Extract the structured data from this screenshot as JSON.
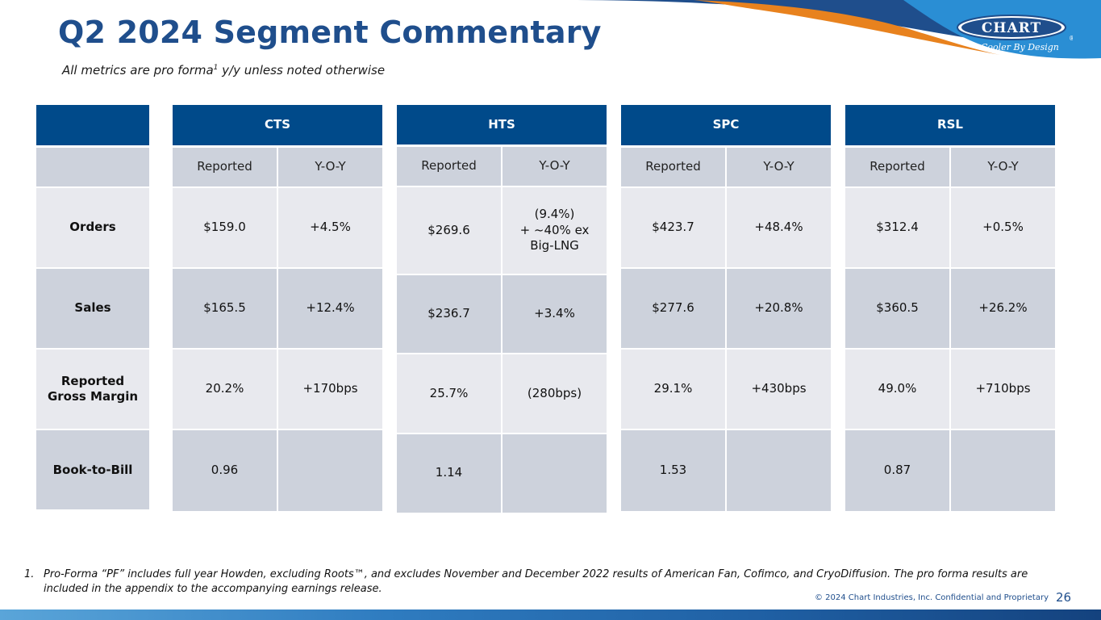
{
  "header": {
    "title": "Q2 2024 Segment Commentary",
    "subtitle_main": "All metrics are pro forma",
    "subtitle_sup": "1",
    "subtitle_tail": " y/y unless noted otherwise",
    "logo_text": "CHART",
    "logo_tagline": "Cooler By Design"
  },
  "row_labels": {
    "orders": "Orders",
    "sales": "Sales",
    "gross_margin_line1": "Reported",
    "gross_margin_line2": "Gross Margin",
    "book_to_bill": "Book-to-Bill"
  },
  "segments": {
    "cts": {
      "name": "CTS",
      "col1": "Reported",
      "col2": "Y-O-Y",
      "orders": "$159.0",
      "orders_yoy": "+4.5%",
      "sales": "$165.5",
      "sales_yoy": "+12.4%",
      "margin": "20.2%",
      "margin_yoy": "+170bps",
      "btb": "0.96"
    },
    "hts": {
      "name": "HTS",
      "col1": "Reported",
      "col2": "Y-O-Y",
      "orders": "$269.6",
      "orders_yoy_l1": "(9.4%)",
      "orders_yoy_l2": "+ ~40% ex",
      "orders_yoy_l3": "Big-LNG",
      "sales": "$236.7",
      "sales_yoy": "+3.4%",
      "margin": "25.7%",
      "margin_yoy": "(280bps)",
      "btb": "1.14"
    },
    "spc": {
      "name": "SPC",
      "col1": "Reported",
      "col2": "Y-O-Y",
      "orders": "$423.7",
      "orders_yoy": "+48.4%",
      "sales": "$277.6",
      "sales_yoy": "+20.8%",
      "margin": "29.1%",
      "margin_yoy": "+430bps",
      "btb": "1.53"
    },
    "rsl": {
      "name": "RSL",
      "col1": "Reported",
      "col2": "Y-O-Y",
      "orders": "$312.4",
      "orders_yoy": "+0.5%",
      "sales": "$360.5",
      "sales_yoy": "+26.2%",
      "margin": "49.0%",
      "margin_yoy": "+710bps",
      "btb": "0.87"
    }
  },
  "footnote": {
    "number": "1.",
    "text": "Pro-Forma “PF” includes full year Howden, excluding Roots™, and excludes November and December 2022 results of American Fan, Cofimco, and CryoDiffusion. The pro forma results are included in the appendix to the accompanying earnings release."
  },
  "footer": {
    "copyright": "© 2024 Chart Industries, Inc. Confidential and Proprietary",
    "page_number": "26"
  },
  "colors": {
    "header_blue": "#004a8a",
    "title_blue": "#1f4e8c",
    "accent_orange": "#e8821e",
    "cell_light": "#e8e9ee",
    "cell_dark": "#cdd2dc"
  }
}
